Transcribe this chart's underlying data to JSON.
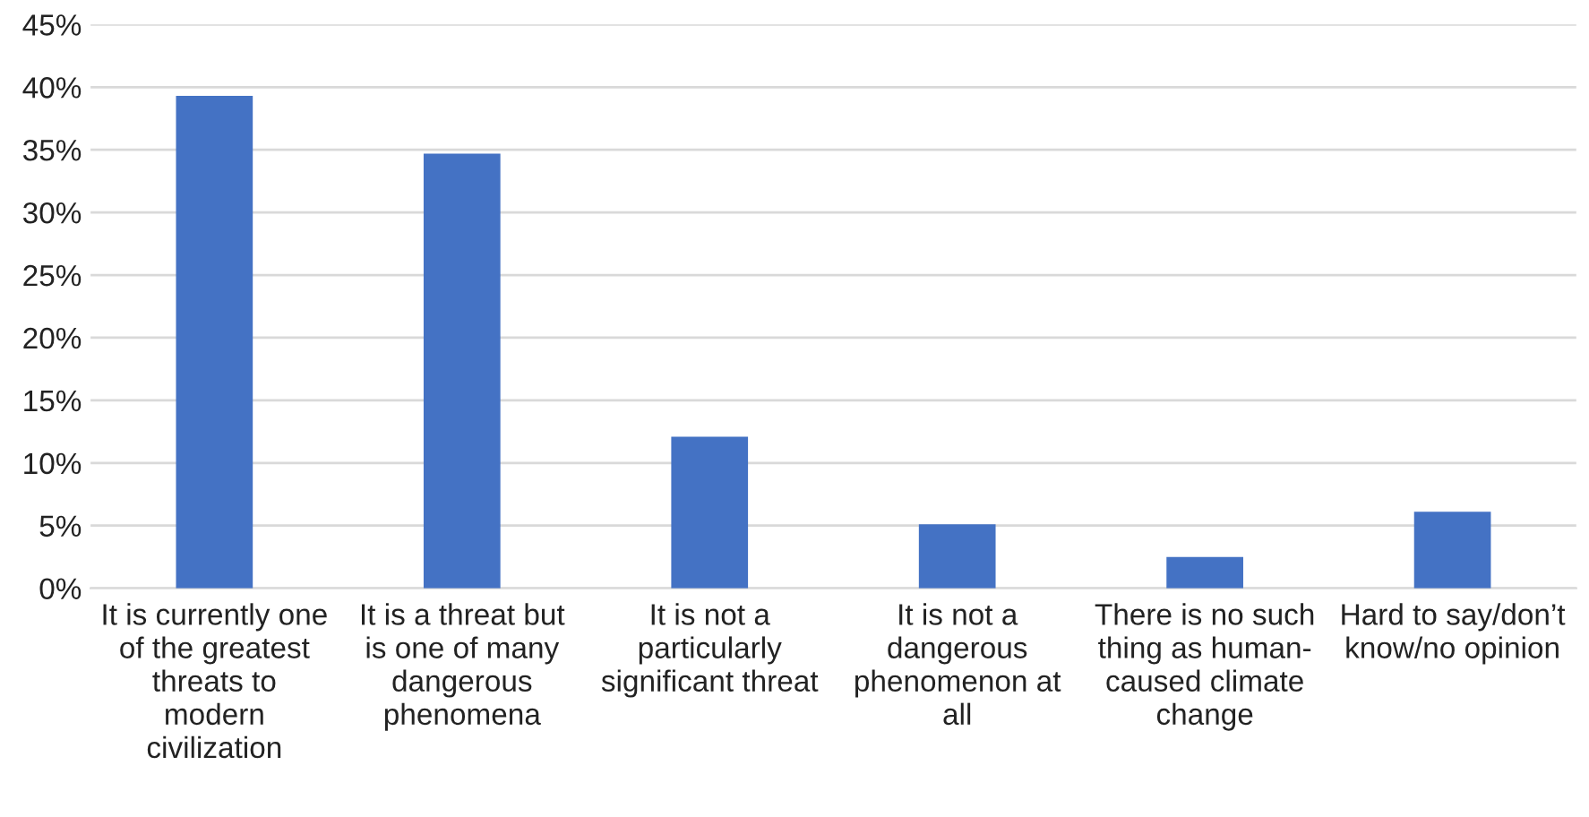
{
  "chart_data": {
    "type": "bar",
    "categories": [
      "It is currently one\nof the greatest\nthreats to\nmodern\ncivilization",
      "It is a threat but\nis one of many\ndangerous\nphenomena",
      "It is not a\nparticularly\nsignificant threat",
      "It is not a\ndangerous\nphenomenon at\nall",
      "There is no such\nthing as human-\ncaused climate\nchange",
      "Hard to say/don’t\nknow/no opinion"
    ],
    "values": [
      39.3,
      34.7,
      12.1,
      5.1,
      2.5,
      6.1
    ],
    "color": "#4472c4",
    "ylim": [
      0,
      45
    ],
    "yticks": [
      {
        "value": 0,
        "label": "0%"
      },
      {
        "value": 5,
        "label": "5%"
      },
      {
        "value": 10,
        "label": "10%"
      },
      {
        "value": 15,
        "label": "15%"
      },
      {
        "value": 20,
        "label": "20%"
      },
      {
        "value": 25,
        "label": "25%"
      },
      {
        "value": 30,
        "label": "30%"
      },
      {
        "value": 35,
        "label": "35%"
      },
      {
        "value": 40,
        "label": "40%"
      },
      {
        "value": 45,
        "label": "45%"
      }
    ],
    "grid": "y",
    "legend": false
  }
}
